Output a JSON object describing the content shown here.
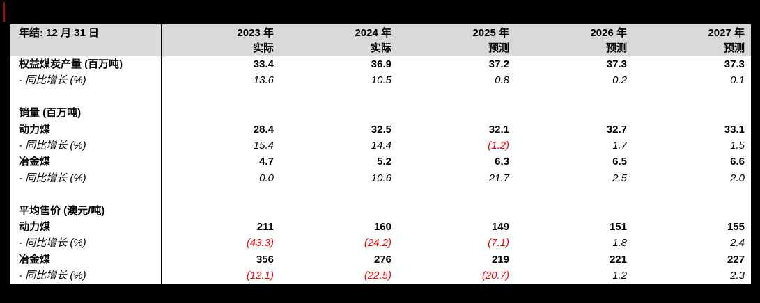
{
  "accent": {
    "color": "#C00000"
  },
  "colors": {
    "negative_value": "#FF0000",
    "header_bg": "#D9D9D9",
    "frame": "#000000",
    "table_bg": "#FFFFFF"
  },
  "table": {
    "header": {
      "row_label": "年结: 12 月 31 日",
      "columns": [
        {
          "year": "2023 年",
          "type": "实际"
        },
        {
          "year": "2024 年",
          "type": "实际"
        },
        {
          "year": "2025 年",
          "type": "预测"
        },
        {
          "year": "2026 年",
          "type": "预测"
        },
        {
          "year": "2027 年",
          "type": "预测"
        }
      ]
    },
    "rows": [
      {
        "label": "权益煤炭产量 (百万吨)",
        "style": "bold",
        "values": [
          "33.4",
          "36.9",
          "37.2",
          "37.3",
          "37.3"
        ]
      },
      {
        "label": "- 同比增长 (%)",
        "style": "italic",
        "values": [
          "13.6",
          "10.5",
          "0.8",
          "0.2",
          "0.1"
        ]
      },
      {
        "label": "",
        "style": "blank",
        "values": [
          "",
          "",
          "",
          "",
          ""
        ]
      },
      {
        "label": "销量 (百万吨)",
        "style": "bold",
        "values": [
          "",
          "",
          "",
          "",
          ""
        ]
      },
      {
        "label": "动力煤",
        "style": "bold",
        "values": [
          "28.4",
          "32.5",
          "32.1",
          "32.7",
          "33.1"
        ]
      },
      {
        "label": "- 同比增长 (%)",
        "style": "italic",
        "values": [
          "15.4",
          "14.4",
          "(1.2)",
          "1.7",
          "1.5"
        ]
      },
      {
        "label": "冶金煤",
        "style": "bold",
        "values": [
          "4.7",
          "5.2",
          "6.3",
          "6.5",
          "6.6"
        ]
      },
      {
        "label": "- 同比增长 (%)",
        "style": "italic",
        "values": [
          "0.0",
          "10.6",
          "21.7",
          "2.5",
          "2.0"
        ]
      },
      {
        "label": "",
        "style": "blank",
        "values": [
          "",
          "",
          "",
          "",
          ""
        ]
      },
      {
        "label": "平均售价 (澳元/吨)",
        "style": "bold",
        "values": [
          "",
          "",
          "",
          "",
          ""
        ]
      },
      {
        "label": "动力煤",
        "style": "bold",
        "values": [
          "211",
          "160",
          "149",
          "151",
          "155"
        ]
      },
      {
        "label": "- 同比增长 (%)",
        "style": "italic",
        "values": [
          "(43.3)",
          "(24.2)",
          "(7.1)",
          "1.8",
          "2.4"
        ]
      },
      {
        "label": "冶金煤",
        "style": "bold",
        "values": [
          "356",
          "276",
          "219",
          "221",
          "227"
        ]
      },
      {
        "label": "- 同比增长 (%)",
        "style": "italic",
        "values": [
          "(12.1)",
          "(22.5)",
          "(20.7)",
          "1.2",
          "2.3"
        ]
      }
    ]
  }
}
